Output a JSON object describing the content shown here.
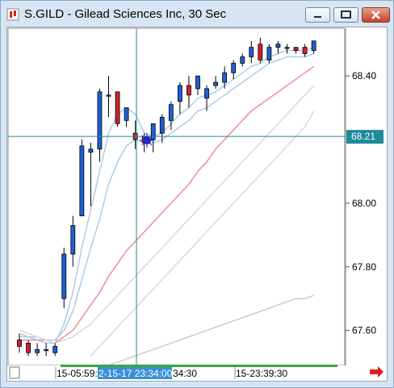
{
  "window": {
    "title": "S.GILD - Gilead Sciences Inc, 30 Sec",
    "icon": "app-chart-icon",
    "buttons": [
      "minimize",
      "maximize",
      "close"
    ]
  },
  "chart_data": {
    "type": "candlestick",
    "title": "S.GILD - Gilead Sciences Inc, 30 Sec",
    "ylim": [
      67.49,
      68.55
    ],
    "y_ticks": [
      "68.40",
      "68.00",
      "67.80",
      "67.60"
    ],
    "y_tick_values": [
      68.4,
      68.0,
      67.8,
      67.6
    ],
    "current_price_label": "68.21",
    "current_price": 68.21,
    "x_labels": [
      "15-05:59:",
      "2-15-17 23:34:00",
      "34:30",
      "15-23:39:30"
    ],
    "crosshair": {
      "time": "2-15-17 23:34:00",
      "price": 68.21
    },
    "candles": [
      {
        "o": 67.57,
        "h": 67.59,
        "l": 67.53,
        "c": 67.55
      },
      {
        "o": 67.56,
        "h": 67.57,
        "l": 67.52,
        "c": 67.53
      },
      {
        "o": 67.53,
        "h": 67.56,
        "l": 67.52,
        "c": 67.54
      },
      {
        "o": 67.54,
        "h": 67.56,
        "l": 67.52,
        "c": 67.54
      },
      {
        "o": 67.53,
        "h": 67.56,
        "l": 67.52,
        "c": 67.55
      },
      {
        "o": 67.7,
        "h": 67.86,
        "l": 67.67,
        "c": 67.84
      },
      {
        "o": 67.84,
        "h": 67.96,
        "l": 67.8,
        "c": 67.93
      },
      {
        "o": 67.96,
        "h": 68.2,
        "l": 67.96,
        "c": 68.18
      },
      {
        "o": 68.16,
        "h": 68.19,
        "l": 67.99,
        "c": 68.17
      },
      {
        "o": 68.17,
        "h": 68.36,
        "l": 68.13,
        "c": 68.35
      },
      {
        "o": 68.34,
        "h": 68.4,
        "l": 68.27,
        "c": 68.34
      },
      {
        "o": 68.35,
        "h": 68.35,
        "l": 68.24,
        "c": 68.25
      },
      {
        "o": 68.26,
        "h": 68.3,
        "l": 68.24,
        "c": 68.3
      },
      {
        "o": 68.22,
        "h": 68.26,
        "l": 68.17,
        "c": 68.2
      },
      {
        "o": 68.21,
        "h": 68.22,
        "l": 68.16,
        "c": 68.19
      },
      {
        "o": 68.2,
        "h": 68.25,
        "l": 68.16,
        "c": 68.25
      },
      {
        "o": 68.22,
        "h": 68.28,
        "l": 68.19,
        "c": 68.27
      },
      {
        "o": 68.26,
        "h": 68.32,
        "l": 68.23,
        "c": 68.31
      },
      {
        "o": 68.32,
        "h": 68.38,
        "l": 68.28,
        "c": 68.37
      },
      {
        "o": 68.37,
        "h": 68.4,
        "l": 68.3,
        "c": 68.34
      },
      {
        "o": 68.36,
        "h": 68.4,
        "l": 68.34,
        "c": 68.4
      },
      {
        "o": 68.33,
        "h": 68.37,
        "l": 68.29,
        "c": 68.36
      },
      {
        "o": 68.37,
        "h": 68.4,
        "l": 68.36,
        "c": 68.38
      },
      {
        "o": 68.38,
        "h": 68.43,
        "l": 68.36,
        "c": 68.41
      },
      {
        "o": 68.41,
        "h": 68.45,
        "l": 68.39,
        "c": 68.44
      },
      {
        "o": 68.44,
        "h": 68.47,
        "l": 68.43,
        "c": 68.46
      },
      {
        "o": 68.46,
        "h": 68.51,
        "l": 68.44,
        "c": 68.49
      },
      {
        "o": 68.5,
        "h": 68.52,
        "l": 68.44,
        "c": 68.45
      },
      {
        "o": 68.45,
        "h": 68.5,
        "l": 68.44,
        "c": 68.49
      },
      {
        "o": 68.49,
        "h": 68.51,
        "l": 68.47,
        "c": 68.5
      },
      {
        "o": 68.49,
        "h": 68.5,
        "l": 68.47,
        "c": 68.49
      },
      {
        "o": 68.49,
        "h": 68.49,
        "l": 68.47,
        "c": 68.48
      },
      {
        "o": 68.49,
        "h": 68.5,
        "l": 68.46,
        "c": 68.47
      },
      {
        "o": 68.48,
        "h": 68.51,
        "l": 68.47,
        "c": 68.51
      }
    ],
    "series": [
      {
        "color": "#a9cce8",
        "values": [
          67.59,
          67.58,
          67.57,
          67.56,
          67.56,
          67.62,
          67.72,
          67.86,
          67.98,
          68.1,
          68.22,
          68.28,
          68.3,
          68.28,
          68.22,
          68.21,
          68.22,
          68.25,
          68.28,
          68.3,
          68.33,
          68.34,
          68.35,
          68.37,
          68.39,
          68.41,
          68.43,
          68.44,
          68.46,
          68.47,
          68.48,
          68.48,
          68.48,
          68.49
        ]
      },
      {
        "color": "#a9cce8",
        "values": [
          67.58,
          67.58,
          67.58,
          67.57,
          67.57,
          67.6,
          67.66,
          67.76,
          67.86,
          67.95,
          68.06,
          68.13,
          68.18,
          68.2,
          68.19,
          68.19,
          68.2,
          68.22,
          68.24,
          68.26,
          68.29,
          68.3,
          68.32,
          68.34,
          68.36,
          68.38,
          68.4,
          68.42,
          68.44,
          68.45,
          68.46,
          68.46,
          68.46,
          68.47
        ]
      },
      {
        "color": "#f08aa6",
        "values": [
          67.57,
          67.57,
          67.57,
          67.57,
          67.56,
          67.58,
          67.6,
          67.64,
          67.68,
          67.72,
          67.77,
          67.81,
          67.85,
          67.88,
          67.91,
          67.94,
          67.97,
          68.0,
          68.03,
          68.06,
          68.1,
          68.13,
          68.17,
          68.2,
          68.23,
          68.26,
          68.29,
          68.31,
          68.33,
          68.35,
          68.37,
          68.39,
          68.41,
          68.43
        ]
      },
      {
        "color": "#d9d9d9",
        "values": [
          67.6,
          67.59,
          67.58,
          67.57,
          67.56,
          67.57,
          67.58,
          67.6,
          67.62,
          67.65,
          67.68,
          67.71,
          67.74,
          67.77,
          67.8,
          67.83,
          67.86,
          67.89,
          67.92,
          67.95,
          67.98,
          68.01,
          68.04,
          68.07,
          68.1,
          68.13,
          68.16,
          68.19,
          68.22,
          68.25,
          68.28,
          68.31,
          68.34,
          68.37
        ]
      },
      {
        "color": "#d9d9d9",
        "values": [
          null,
          null,
          null,
          null,
          null,
          null,
          null,
          null,
          67.52,
          67.55,
          67.58,
          67.61,
          67.64,
          67.67,
          67.7,
          67.73,
          67.76,
          67.79,
          67.82,
          67.85,
          67.88,
          67.91,
          67.94,
          67.97,
          68.0,
          68.03,
          68.06,
          68.09,
          68.12,
          68.15,
          68.18,
          68.21,
          68.24,
          68.29
        ]
      },
      {
        "color": "#cccccc",
        "values": [
          null,
          null,
          null,
          null,
          null,
          null,
          null,
          null,
          null,
          null,
          67.49,
          67.5,
          67.51,
          67.52,
          67.53,
          67.54,
          67.55,
          67.56,
          67.57,
          67.58,
          67.59,
          67.6,
          67.61,
          67.62,
          67.63,
          67.64,
          67.65,
          67.66,
          67.67,
          67.68,
          67.69,
          67.7,
          67.7,
          67.71
        ]
      }
    ]
  }
}
